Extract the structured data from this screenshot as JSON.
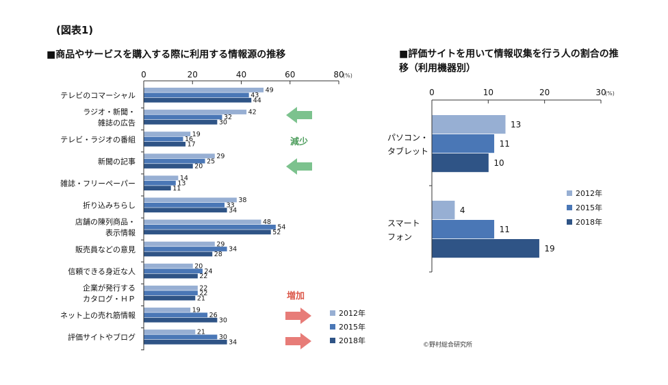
{
  "figure_label": "(図表1)",
  "credit": "©野村総合研究所",
  "colors": {
    "s2012": "#97afd3",
    "s2015": "#4a77b6",
    "s2018": "#2f5486",
    "arrow_down": "#7cc28e",
    "arrow_up": "#e77c78",
    "label_down": "#4f9e5e",
    "label_up": "#dc5a4c"
  },
  "annotations": {
    "decrease": "減少",
    "increase": "増加"
  },
  "chart_data": [
    {
      "type": "bar",
      "orientation": "horizontal",
      "title": "■商品やサービスを購入する際に利用する情報源の推移",
      "unit": "(%)",
      "xlim": [
        0,
        80
      ],
      "ticks": [
        0,
        20,
        40,
        60,
        80
      ],
      "categories": [
        [
          "テレビのコマーシャル"
        ],
        [
          "ラジオ・新聞・",
          "雑誌の広告"
        ],
        [
          "テレビ・ラジオの番組"
        ],
        [
          "新聞の記事"
        ],
        [
          "雑誌・フリーペーパー"
        ],
        [
          "折り込みちらし"
        ],
        [
          "店舗の陳列商品・",
          "表示情報"
        ],
        [
          "販売員などの意見"
        ],
        [
          "信頼できる身近な人"
        ],
        [
          "企業が発行する",
          "カタログ・ＨＰ"
        ],
        [
          "ネット上の売れ筋情報"
        ],
        [
          "評価サイトやブログ"
        ]
      ],
      "series": [
        {
          "name": "2012年",
          "values": [
            49,
            42,
            19,
            29,
            14,
            38,
            48,
            29,
            20,
            22,
            19,
            21
          ]
        },
        {
          "name": "2015年",
          "values": [
            43,
            32,
            16,
            25,
            13,
            33,
            54,
            34,
            24,
            22,
            26,
            30
          ]
        },
        {
          "name": "2018年",
          "values": [
            44,
            30,
            17,
            20,
            11,
            34,
            52,
            28,
            22,
            21,
            30,
            34
          ]
        }
      ],
      "legend": "bottom-right"
    },
    {
      "type": "bar",
      "orientation": "horizontal",
      "title": "■評価サイトを用いて情報収集を行う人の割合の推移（利用機器別）",
      "unit": "(%)",
      "xlim": [
        0,
        30
      ],
      "ticks": [
        0,
        10,
        20,
        30
      ],
      "categories": [
        [
          "パソコン・",
          "タブレット"
        ],
        [
          "スマート",
          "フォン"
        ]
      ],
      "series": [
        {
          "name": "2012年",
          "values": [
            13,
            4
          ]
        },
        {
          "name": "2015年",
          "values": [
            11,
            11
          ]
        },
        {
          "name": "2018年",
          "values": [
            10,
            19
          ]
        }
      ],
      "legend": "right"
    }
  ]
}
